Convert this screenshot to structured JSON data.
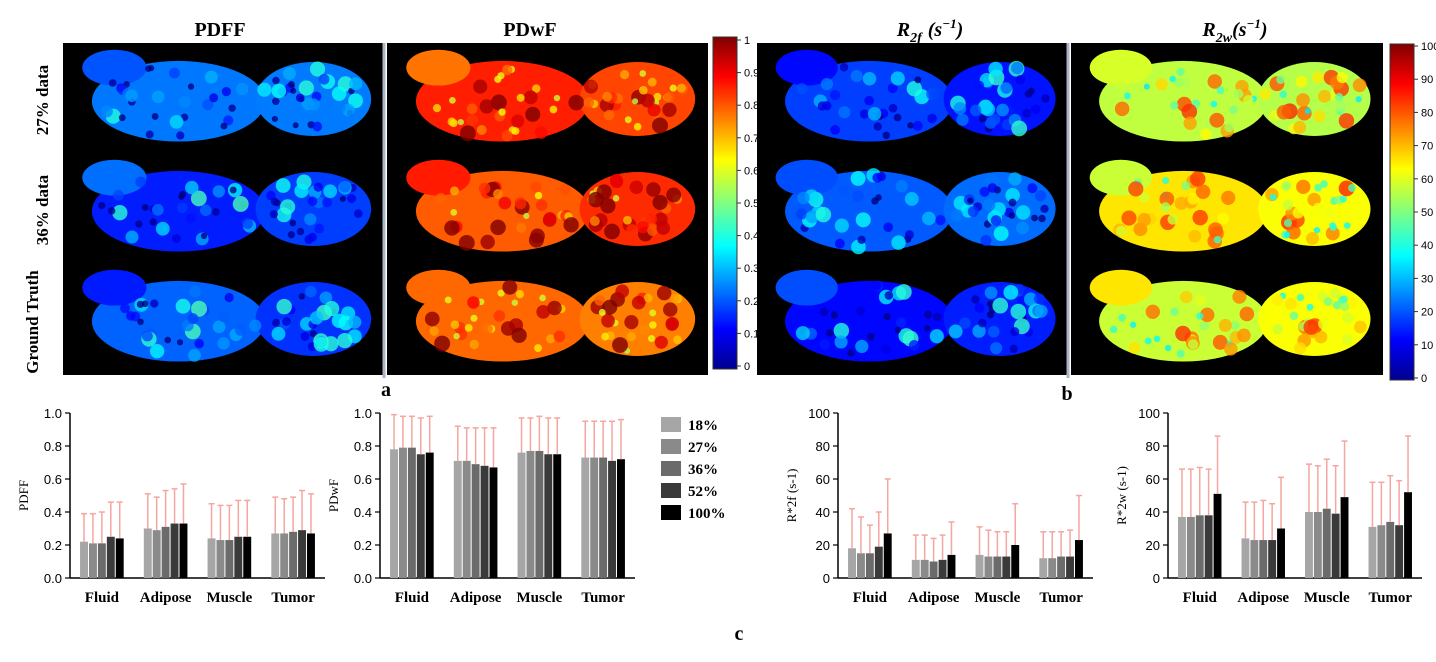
{
  "panels": {
    "a_label": "a",
    "b_label": "b",
    "c_label": "c",
    "a_map_titles": [
      "PDFF",
      "PDwF"
    ],
    "b_map_titles": [
      "R",
      "R"
    ],
    "b_map_title_sub": [
      "2f",
      "2w"
    ],
    "b_map_title_unit": "(s",
    "b_map_title_exp": "−1",
    "b_map_title_close": ")",
    "row_labels": [
      "27% data",
      "36% data",
      "Ground Truth"
    ],
    "colorbar_a": {
      "ticks": [
        "0",
        "0.1",
        "0.2",
        "0.3",
        "0.4",
        "0.5",
        "0.6",
        "0.7",
        "0.8",
        "0.9",
        "1"
      ]
    },
    "colorbar_b": {
      "ticks": [
        "0",
        "10",
        "20",
        "30",
        "40",
        "50",
        "60",
        "70",
        "80",
        "90",
        "100"
      ]
    },
    "map_tint": {
      "PDFF": 0.2,
      "PDwF": 0.8,
      "R2f": 0.18,
      "R2w": 0.6
    }
  },
  "legend": {
    "entries": [
      "18%",
      "27%",
      "36%",
      "52%",
      "100%"
    ],
    "colors": [
      "#a6a6a6",
      "#8a8a8a",
      "#6b6b6b",
      "#3a3a3a",
      "#000000"
    ]
  },
  "error_bar_color": "#f4a6a0",
  "chart_data": [
    {
      "type": "bar",
      "ylabel": "PDFF",
      "ylim": [
        0,
        1.0
      ],
      "yticks": [
        "0.0",
        "0.2",
        "0.4",
        "0.6",
        "0.8",
        "1.0"
      ],
      "categories": [
        "Fluid",
        "Adipose",
        "Muscle",
        "Tumor"
      ],
      "series": [
        {
          "name": "18%",
          "values": [
            0.22,
            0.3,
            0.24,
            0.27
          ],
          "errors": [
            0.17,
            0.21,
            0.21,
            0.22
          ]
        },
        {
          "name": "27%",
          "values": [
            0.21,
            0.29,
            0.23,
            0.27
          ],
          "errors": [
            0.18,
            0.2,
            0.21,
            0.21
          ]
        },
        {
          "name": "36%",
          "values": [
            0.21,
            0.31,
            0.23,
            0.28
          ],
          "errors": [
            0.19,
            0.22,
            0.21,
            0.21
          ]
        },
        {
          "name": "52%",
          "values": [
            0.25,
            0.33,
            0.25,
            0.29
          ],
          "errors": [
            0.21,
            0.21,
            0.22,
            0.24
          ]
        },
        {
          "name": "100%",
          "values": [
            0.24,
            0.33,
            0.25,
            0.27
          ],
          "errors": [
            0.22,
            0.24,
            0.22,
            0.24
          ]
        }
      ]
    },
    {
      "type": "bar",
      "ylabel": "PDwF",
      "ylim": [
        0,
        1.0
      ],
      "yticks": [
        "0.0",
        "0.2",
        "0.4",
        "0.6",
        "0.8",
        "1.0"
      ],
      "categories": [
        "Fluid",
        "Adipose",
        "Muscle",
        "Tumor"
      ],
      "series": [
        {
          "name": "18%",
          "values": [
            0.78,
            0.71,
            0.76,
            0.73
          ],
          "errors": [
            0.21,
            0.21,
            0.21,
            0.22
          ]
        },
        {
          "name": "27%",
          "values": [
            0.79,
            0.71,
            0.77,
            0.73
          ],
          "errors": [
            0.19,
            0.2,
            0.2,
            0.22
          ]
        },
        {
          "name": "36%",
          "values": [
            0.79,
            0.69,
            0.77,
            0.73
          ],
          "errors": [
            0.19,
            0.22,
            0.21,
            0.22
          ]
        },
        {
          "name": "52%",
          "values": [
            0.75,
            0.68,
            0.75,
            0.71
          ],
          "errors": [
            0.22,
            0.23,
            0.22,
            0.24
          ]
        },
        {
          "name": "100%",
          "values": [
            0.76,
            0.67,
            0.75,
            0.72
          ],
          "errors": [
            0.22,
            0.24,
            0.22,
            0.24
          ]
        }
      ]
    },
    {
      "type": "bar",
      "ylabel": "R*2f (s-1)",
      "ylim": [
        0,
        100
      ],
      "yticks": [
        "0",
        "20",
        "40",
        "60",
        "80",
        "100"
      ],
      "categories": [
        "Fluid",
        "Adipose",
        "Muscle",
        "Tumor"
      ],
      "series": [
        {
          "name": "18%",
          "values": [
            18,
            11,
            14,
            12
          ],
          "errors": [
            24,
            15,
            17,
            16
          ]
        },
        {
          "name": "27%",
          "values": [
            15,
            11,
            13,
            12
          ],
          "errors": [
            22,
            15,
            16,
            16
          ]
        },
        {
          "name": "36%",
          "values": [
            15,
            10,
            13,
            13
          ],
          "errors": [
            17,
            14,
            15,
            15
          ]
        },
        {
          "name": "52%",
          "values": [
            19,
            11,
            13,
            13
          ],
          "errors": [
            21,
            15,
            15,
            16
          ]
        },
        {
          "name": "100%",
          "values": [
            27,
            14,
            20,
            23
          ],
          "errors": [
            33,
            20,
            25,
            27
          ]
        }
      ]
    },
    {
      "type": "bar",
      "ylabel": "R*2w (s-1)",
      "ylim": [
        0,
        100
      ],
      "yticks": [
        "0",
        "20",
        "40",
        "60",
        "80",
        "100"
      ],
      "categories": [
        "Fluid",
        "Adipose",
        "Muscle",
        "Tumor"
      ],
      "series": [
        {
          "name": "18%",
          "values": [
            37,
            24,
            40,
            31
          ],
          "errors": [
            29,
            22,
            29,
            27
          ]
        },
        {
          "name": "27%",
          "values": [
            37,
            23,
            40,
            32
          ],
          "errors": [
            29,
            23,
            28,
            26
          ]
        },
        {
          "name": "36%",
          "values": [
            38,
            23,
            42,
            34
          ],
          "errors": [
            29,
            24,
            30,
            28
          ]
        },
        {
          "name": "52%",
          "values": [
            38,
            23,
            39,
            32
          ],
          "errors": [
            28,
            22,
            29,
            27
          ]
        },
        {
          "name": "100%",
          "values": [
            51,
            30,
            49,
            52
          ],
          "errors": [
            35,
            31,
            34,
            34
          ]
        }
      ]
    }
  ]
}
